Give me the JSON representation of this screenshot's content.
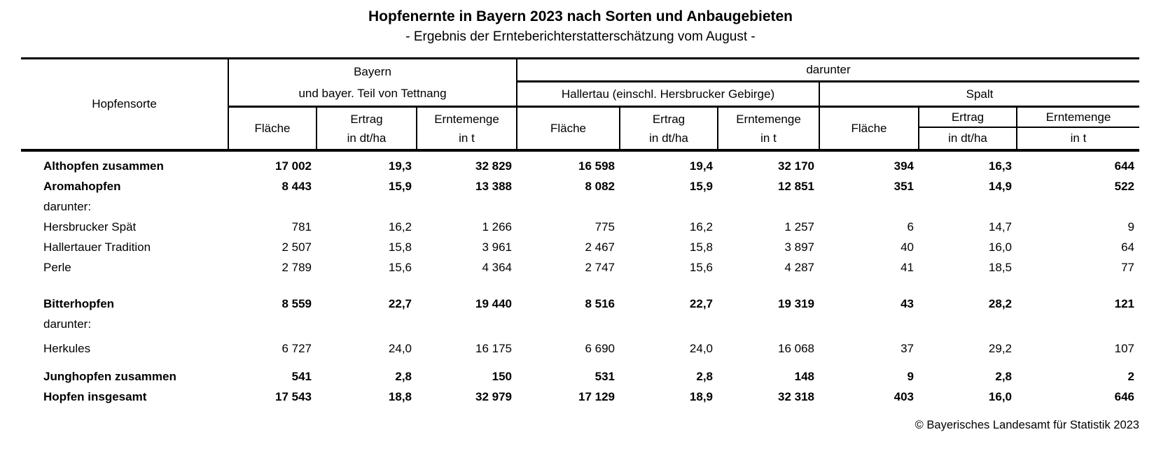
{
  "title": "Hopfenernte in Bayern 2023 nach Sorten und Anbaugebieten",
  "subtitle": "- Ergebnis der Ernteberichterstatterschätzung vom August -",
  "footer": "© Bayerisches Landesamt für Statistik 2023",
  "table": {
    "corner": "Hopfensorte",
    "group_bayern": {
      "line1": "Bayern",
      "line2": "und bayer. Teil von Tettnang"
    },
    "group_darunter": "darunter",
    "group_hallertau": "Hallertau (einschl. Hersbrucker Gebirge)",
    "group_spalt": "Spalt",
    "sub": {
      "flaeche": "Fläche",
      "ertrag": "Ertrag",
      "ertrag_unit": "in dt/ha",
      "menge": "Erntemenge",
      "menge_unit": "in t"
    },
    "rows": [
      {
        "label": "Althopfen zusammen",
        "bold": true,
        "gap_before": 0,
        "values": [
          "17 002",
          "19,3",
          "32 829",
          "16 598",
          "19,4",
          "32 170",
          "394",
          "16,3",
          "644"
        ]
      },
      {
        "label": "Aromahopfen",
        "bold": true,
        "gap_before": 0,
        "values": [
          "8 443",
          "15,9",
          "13 388",
          "8 082",
          "15,9",
          "12 851",
          "351",
          "14,9",
          "522"
        ]
      },
      {
        "label": "darunter:",
        "bold": false,
        "gap_before": 0,
        "values": [
          "",
          "",
          "",
          "",
          "",
          "",
          "",
          "",
          ""
        ]
      },
      {
        "label": "Hersbrucker Spät",
        "bold": false,
        "gap_before": 0,
        "values": [
          "781",
          "16,2",
          "1 266",
          "775",
          "16,2",
          "1 257",
          "6",
          "14,7",
          "9"
        ]
      },
      {
        "label": "Hallertauer Tradition",
        "bold": false,
        "gap_before": 0,
        "values": [
          "2 507",
          "15,8",
          "3 961",
          "2 467",
          "15,8",
          "3 897",
          "40",
          "16,0",
          "64"
        ]
      },
      {
        "label": "Perle",
        "bold": false,
        "gap_before": 0,
        "values": [
          "2 789",
          "15,6",
          "4 364",
          "2 747",
          "15,6",
          "4 287",
          "41",
          "18,5",
          "77"
        ]
      },
      {
        "label": "Bitterhopfen",
        "bold": true,
        "gap_before": 23,
        "values": [
          "8 559",
          "22,7",
          "19 440",
          "8 516",
          "22,7",
          "19 319",
          "43",
          "28,2",
          "121"
        ]
      },
      {
        "label": "darunter:",
        "bold": false,
        "gap_before": 0,
        "values": [
          "",
          "",
          "",
          "",
          "",
          "",
          "",
          "",
          ""
        ]
      },
      {
        "label": "Herkules",
        "bold": false,
        "gap_before": 6,
        "values": [
          "6 727",
          "24,0",
          "16 175",
          "6 690",
          "24,0",
          "16 068",
          "37",
          "29,2",
          "107"
        ]
      },
      {
        "label": "Junghopfen zusammen",
        "bold": true,
        "gap_before": 11,
        "values": [
          "541",
          "2,8",
          "150",
          "531",
          "2,8",
          "148",
          "9",
          "2,8",
          "2"
        ]
      },
      {
        "label": "Hopfen insgesamt",
        "bold": true,
        "gap_before": 0,
        "values": [
          "17 543",
          "18,8",
          "32 979",
          "17 129",
          "18,9",
          "32 318",
          "403",
          "16,0",
          "646"
        ]
      }
    ]
  }
}
